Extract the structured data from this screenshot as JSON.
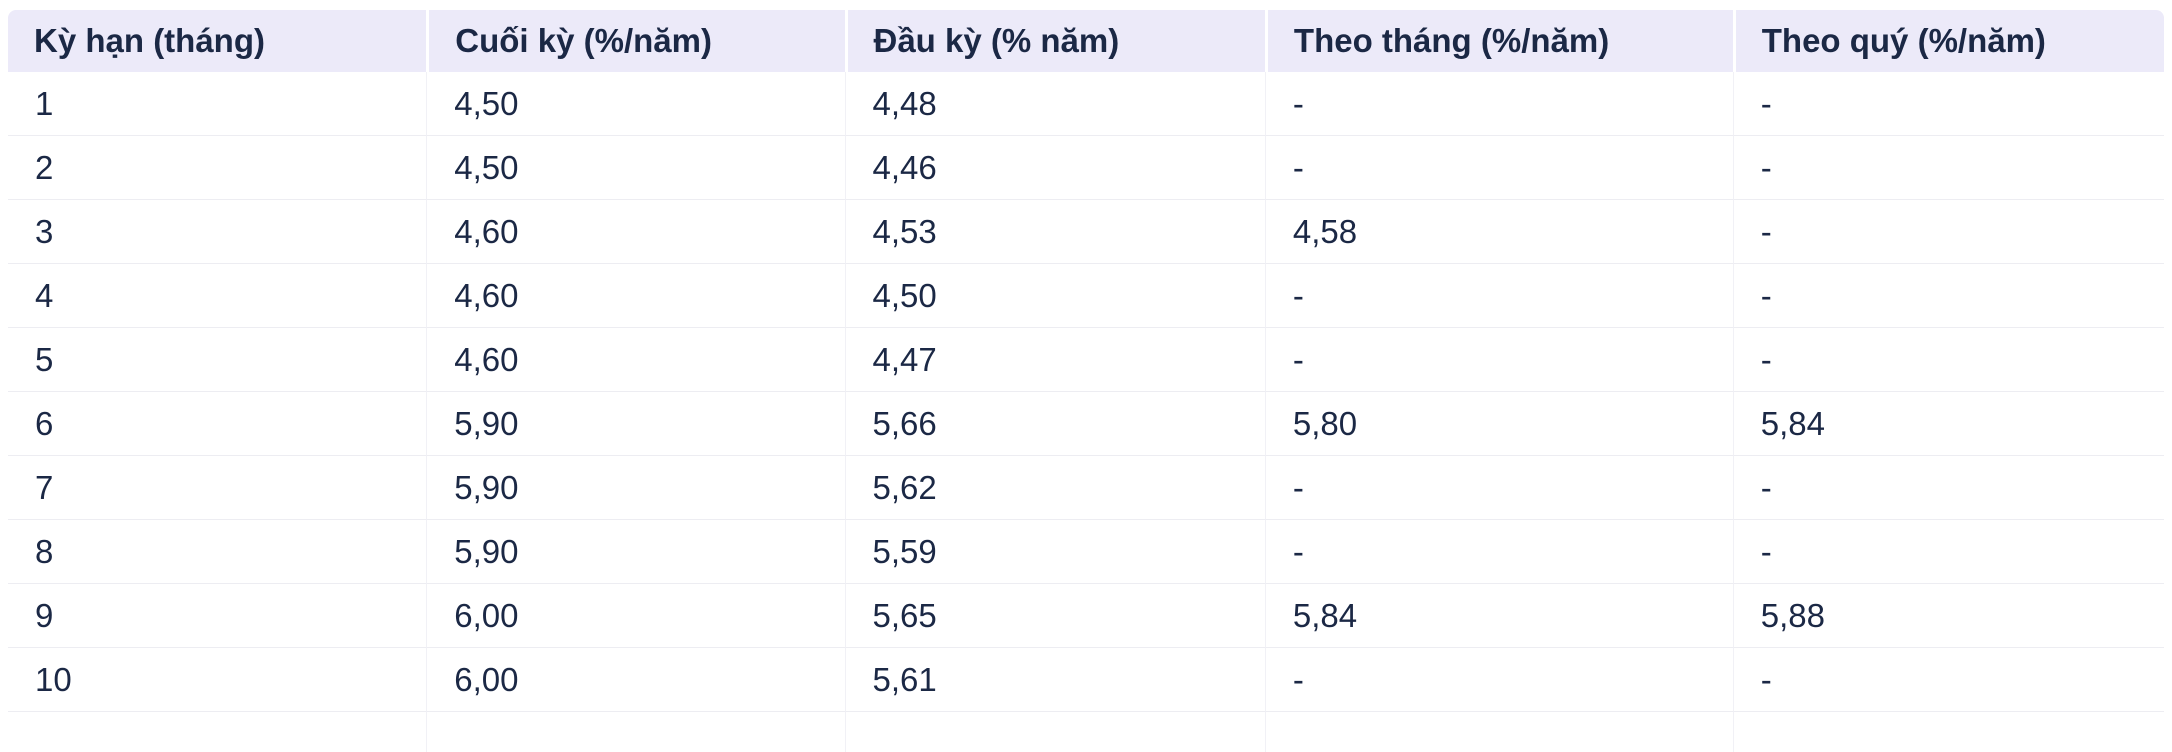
{
  "colors": {
    "header_bg": "#ECEAF9",
    "text": "#1B2845",
    "row_border": "#EDEDF2",
    "column_border": "#F1F1F6",
    "page_bg": "#FFFFFF"
  },
  "chart_data": {
    "type": "table",
    "title": "",
    "columns": [
      "Kỳ hạn (tháng)",
      "Cuối kỳ (%/năm)",
      "Đầu kỳ (% năm)",
      "Theo tháng (%/năm)",
      "Theo quý (%/năm)"
    ],
    "column_keys": [
      "term-months",
      "end-of-period",
      "start-of-period",
      "monthly",
      "quarterly"
    ],
    "rows": [
      [
        "1",
        "4,50",
        "4,48",
        "-",
        "-"
      ],
      [
        "2",
        "4,50",
        "4,46",
        "-",
        "-"
      ],
      [
        "3",
        "4,60",
        "4,53",
        "4,58",
        "-"
      ],
      [
        "4",
        "4,60",
        "4,50",
        "-",
        "-"
      ],
      [
        "5",
        "4,60",
        "4,47",
        "-",
        "-"
      ],
      [
        "6",
        "5,90",
        "5,66",
        "5,80",
        "5,84"
      ],
      [
        "7",
        "5,90",
        "5,62",
        "-",
        "-"
      ],
      [
        "8",
        "5,90",
        "5,59",
        "-",
        "-"
      ],
      [
        "9",
        "6,00",
        "5,65",
        "5,84",
        "5,88"
      ],
      [
        "10",
        "6,00",
        "5,61",
        "-",
        "-"
      ]
    ],
    "partial_row_visible": true,
    "layout_hints": {
      "column_width_pct": [
        19.4,
        19.4,
        19.5,
        21.7,
        20.0
      ],
      "decimal_separator": ",",
      "empty_value": "-"
    }
  }
}
